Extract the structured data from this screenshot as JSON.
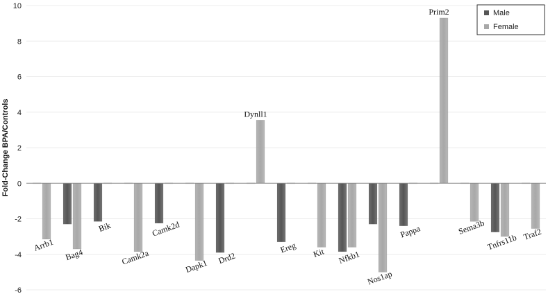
{
  "chart_data": {
    "type": "bar",
    "ylabel": "Fold-Change BPA/Controls",
    "xlabel": "",
    "ylim": [
      -6,
      10
    ],
    "yticks": [
      -6,
      -4,
      -2,
      0,
      2,
      4,
      6,
      8,
      10
    ],
    "grid": true,
    "legend_position": "top-right",
    "categories": [
      "Arrb1",
      "Bag4",
      "Bik",
      "Camk2a",
      "Camk2d",
      "Dapk1",
      "Drd2",
      "Dynll1",
      "Ereg",
      "Kit",
      "Nfkb1",
      "Nos1ap",
      "Pappa",
      "Prim2",
      "Sema3b",
      "Tnfrs11b",
      "Traf2"
    ],
    "series": [
      {
        "name": "Male",
        "color": "#555555",
        "values": [
          0,
          -2.3,
          -2.15,
          0,
          -2.25,
          0,
          -3.9,
          0,
          -3.3,
          0,
          -3.85,
          -2.3,
          -2.4,
          0,
          0,
          -2.75,
          0
        ]
      },
      {
        "name": "Female",
        "color": "#a8a8a8",
        "values": [
          -3.15,
          -3.7,
          0,
          -3.85,
          0,
          -4.35,
          0,
          3.55,
          0,
          -3.6,
          -3.6,
          -5.0,
          0,
          9.3,
          -2.15,
          -3.0,
          -2.55
        ]
      }
    ]
  }
}
